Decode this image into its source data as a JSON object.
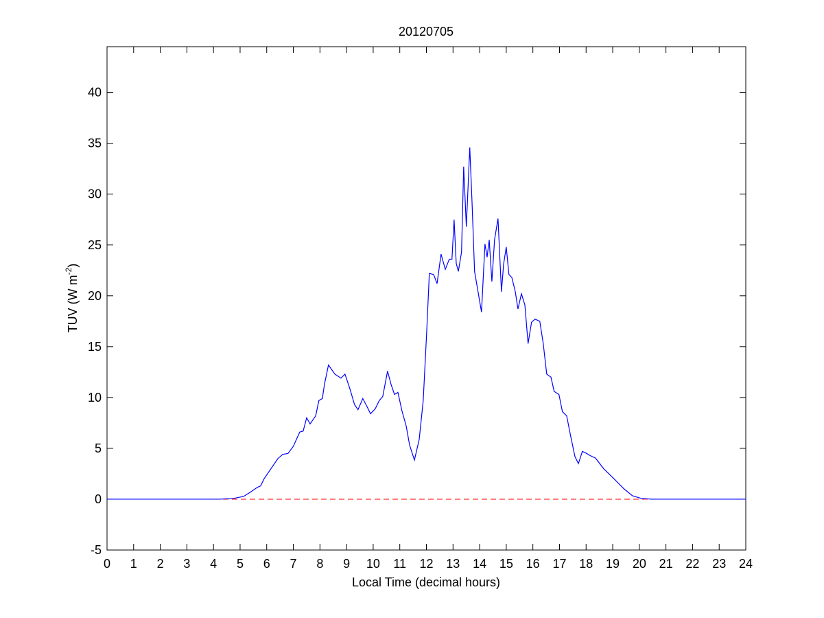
{
  "chart_data": {
    "type": "line",
    "title": "20120705",
    "xlabel": "Local Time (decimal hours)",
    "ylabel": [
      "TUV (W m",
      "-2",
      ")"
    ],
    "xlim": [
      0,
      24
    ],
    "ylim": [
      -5,
      44.5
    ],
    "xticks": [
      0,
      1,
      2,
      3,
      4,
      5,
      6,
      7,
      8,
      9,
      10,
      11,
      12,
      13,
      14,
      15,
      16,
      17,
      18,
      19,
      20,
      21,
      22,
      23,
      24
    ],
    "yticks": [
      -5,
      0,
      5,
      10,
      15,
      20,
      25,
      30,
      35,
      40
    ],
    "reference_line": {
      "value": 0,
      "color": "#ff0000",
      "dashed": true
    },
    "series": [
      {
        "color": "#0000ff",
        "x": [
          0,
          4.23,
          4.74,
          5.13,
          5.39,
          5.64,
          5.77,
          5.9,
          6.16,
          6.42,
          6.6,
          6.8,
          7.0,
          7.24,
          7.37,
          7.5,
          7.63,
          7.84,
          7.96,
          8.09,
          8.17,
          8.32,
          8.56,
          8.79,
          8.94,
          9.12,
          9.3,
          9.43,
          9.61,
          9.77,
          9.9,
          10.08,
          10.23,
          10.36,
          10.54,
          10.67,
          10.8,
          10.93,
          11.08,
          11.24,
          11.37,
          11.55,
          11.73,
          11.88,
          12.01,
          12.11,
          12.27,
          12.4,
          12.55,
          12.71,
          12.86,
          12.96,
          13.04,
          13.12,
          13.2,
          13.32,
          13.4,
          13.5,
          13.63,
          13.71,
          13.81,
          13.94,
          14.07,
          14.2,
          14.28,
          14.36,
          14.46,
          14.56,
          14.69,
          14.82,
          14.9,
          15.0,
          15.1,
          15.21,
          15.34,
          15.44,
          15.57,
          15.7,
          15.82,
          15.95,
          16.08,
          16.26,
          16.39,
          16.52,
          16.68,
          16.8,
          16.98,
          17.11,
          17.27,
          17.42,
          17.58,
          17.71,
          17.86,
          18.02,
          18.14,
          18.35,
          18.66,
          19.05,
          19.43,
          19.74,
          20.08,
          20.46,
          24
        ],
        "values": [
          0,
          0,
          0.07,
          0.27,
          0.7,
          1.15,
          1.3,
          2,
          3,
          4,
          4.4,
          4.5,
          5.2,
          6.6,
          6.7,
          8,
          7.4,
          8.2,
          9.7,
          9.9,
          11.3,
          13.2,
          12.3,
          11.9,
          12.3,
          10.9,
          9.3,
          8.8,
          9.9,
          9.1,
          8.4,
          8.9,
          9.7,
          10.1,
          12.6,
          11.3,
          10.3,
          10.5,
          8.7,
          7.2,
          5.3,
          3.85,
          5.9,
          9.7,
          16.4,
          22.2,
          22.1,
          21.2,
          24.1,
          22.6,
          23.6,
          23.6,
          27.5,
          23.2,
          22.4,
          24.3,
          32.7,
          26.8,
          34.6,
          29.5,
          22.4,
          20.4,
          18.4,
          25.1,
          23.8,
          25.5,
          21.4,
          25.5,
          27.6,
          20.4,
          23.1,
          24.8,
          22.1,
          21.8,
          20.4,
          18.7,
          20.2,
          19.1,
          15.3,
          17.4,
          17.7,
          17.5,
          15.3,
          12.3,
          12.0,
          10.6,
          10.3,
          8.6,
          8.2,
          6.2,
          4.2,
          3.5,
          4.7,
          4.5,
          4.3,
          4.05,
          3.0,
          2.0,
          1.0,
          0.34,
          0.07,
          0,
          0
        ]
      }
    ]
  }
}
